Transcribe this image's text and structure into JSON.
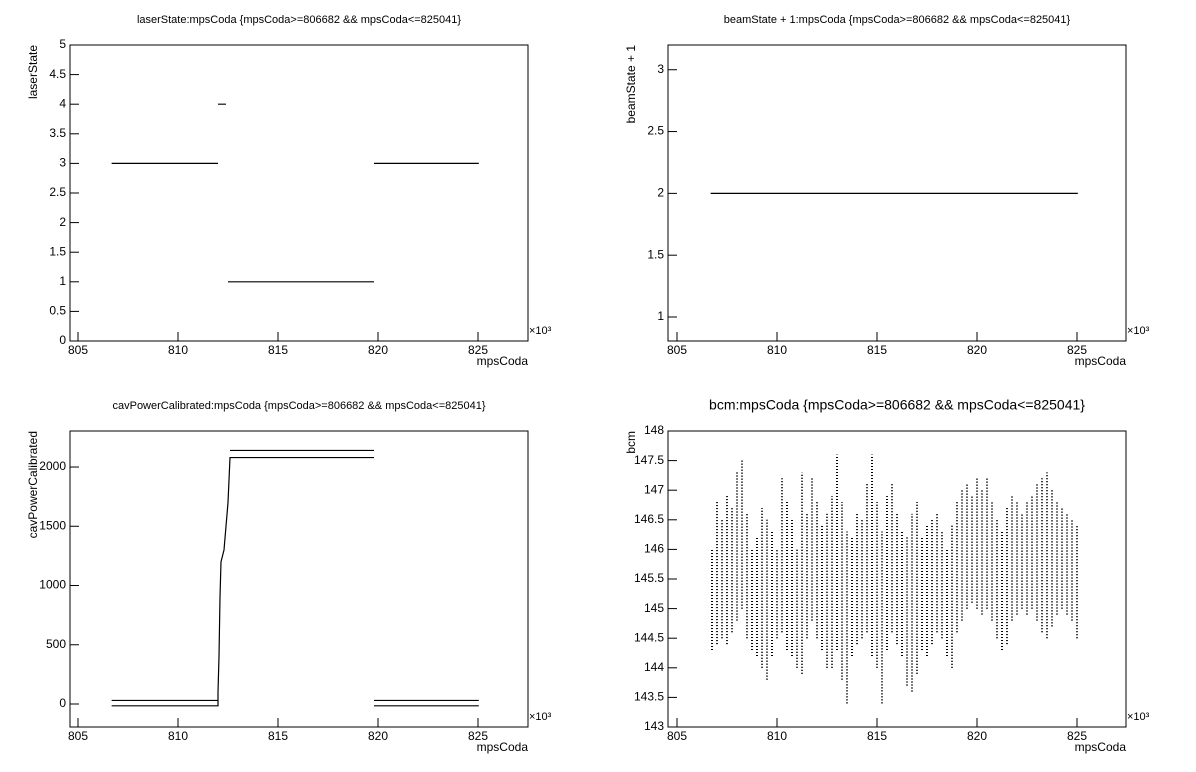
{
  "chart_data": [
    {
      "type": "line",
      "title": "laserState:mpsCoda {mpsCoda>=806682 && mpsCoda<=825041}",
      "x_label": "mpsCoda",
      "y_label": "laserState",
      "x_multiplier": "×10³",
      "xlim": [
        804.6,
        827.5
      ],
      "xticks": [
        805,
        810,
        815,
        820,
        825
      ],
      "ylim": [
        0,
        5
      ],
      "yticks": [
        0,
        0.5,
        1,
        1.5,
        2,
        2.5,
        3,
        3.5,
        4,
        4.5,
        5
      ],
      "series": [
        {
          "color": "#000000",
          "x": [
            806.682,
            812.0,
            812.0,
            812.0,
            812.4,
            812.4,
            812.5,
            819.8,
            819.8,
            819.8,
            825.041
          ],
          "values": [
            3,
            3,
            null,
            4,
            4,
            null,
            1,
            1,
            null,
            3,
            3
          ]
        }
      ]
    },
    {
      "type": "line",
      "title": "beamState + 1:mpsCoda {mpsCoda>=806682 && mpsCoda<=825041}",
      "x_label": "mpsCoda",
      "y_label": "beamState + 1",
      "x_multiplier": "×10³",
      "xlim": [
        804.55,
        827.45
      ],
      "xticks": [
        805,
        810,
        815,
        820,
        825
      ],
      "ylim": [
        0.806,
        3.2
      ],
      "yticks": [
        1,
        1.5,
        2,
        2.5,
        3
      ],
      "series": [
        {
          "color": "#000000",
          "x": [
            806.682,
            825.041
          ],
          "values": [
            2,
            2
          ]
        }
      ]
    },
    {
      "type": "line",
      "title": "cavPowerCalibrated:mpsCoda {mpsCoda>=806682 && mpsCoda<=825041}",
      "x_label": "mpsCoda",
      "y_label": "cavPowerCalibrated",
      "x_multiplier": "×10³",
      "xlim": [
        804.6,
        827.5
      ],
      "xticks": [
        805,
        810,
        815,
        820,
        825
      ],
      "ylim": [
        -194,
        2304
      ],
      "yticks": [
        0,
        500,
        1000,
        1500,
        2000
      ],
      "series": [
        {
          "color": "#000000",
          "x": [
            806.682,
            812.0,
            812.0,
            812.05,
            812.1,
            812.15,
            812.3,
            812.4,
            812.5,
            812.6,
            819.8,
            819.8,
            819.8,
            825.041
          ],
          "values": [
            -15,
            -15,
            100,
            400,
            900,
            1200,
            1300,
            1500,
            1700,
            2080,
            2080,
            null,
            -15,
            -15
          ]
        },
        {
          "color": "#000000",
          "x": [
            806.682,
            812.0,
            812.0,
            812.6,
            819.8,
            819.8,
            819.8,
            825.041
          ],
          "values": [
            30,
            30,
            null,
            2140,
            2140,
            null,
            30,
            30
          ]
        }
      ]
    },
    {
      "type": "range",
      "title": "bcm:mpsCoda {mpsCoda>=806682 && mpsCoda<=825041}",
      "x_label": "mpsCoda",
      "y_label": "bcm",
      "x_multiplier": "×10³",
      "xlim": [
        804.55,
        827.45
      ],
      "xticks": [
        805,
        810,
        815,
        820,
        825
      ],
      "ylim": [
        143,
        148
      ],
      "yticks": [
        143,
        143.5,
        144,
        144.5,
        145,
        145.5,
        146,
        146.5,
        147,
        147.5,
        148
      ],
      "color": "#000000",
      "x": [
        806.75,
        807,
        807.25,
        807.5,
        807.75,
        808,
        808.25,
        808.5,
        808.75,
        809,
        809.25,
        809.5,
        809.75,
        810,
        810.25,
        810.5,
        810.75,
        811,
        811.25,
        811.5,
        811.75,
        812,
        812.25,
        812.5,
        812.75,
        813,
        813.25,
        813.5,
        813.75,
        814,
        814.25,
        814.5,
        814.75,
        815,
        815.25,
        815.5,
        815.75,
        816,
        816.25,
        816.5,
        816.75,
        817,
        817.25,
        817.5,
        817.75,
        818,
        818.25,
        818.5,
        818.75,
        819,
        819.25,
        819.5,
        819.75,
        820,
        820.25,
        820.5,
        820.75,
        821,
        821.25,
        821.5,
        821.75,
        822,
        822.25,
        822.5,
        822.75,
        823,
        823.25,
        823.5,
        823.75,
        824,
        824.25,
        824.5,
        824.75,
        825
      ],
      "lows": [
        144.3,
        144.4,
        144.5,
        144.4,
        144.6,
        144.8,
        145.0,
        144.5,
        144.3,
        144.2,
        144.0,
        143.8,
        144.2,
        144.5,
        144.6,
        144.3,
        144.2,
        144.0,
        143.9,
        144.5,
        144.8,
        144.5,
        144.3,
        144.0,
        144.0,
        144.3,
        143.8,
        143.4,
        144.2,
        144.4,
        144.5,
        144.6,
        144.2,
        144.0,
        143.4,
        144.3,
        144.6,
        144.4,
        144.2,
        143.7,
        143.6,
        143.9,
        144.3,
        144.2,
        144.4,
        144.6,
        144.5,
        144.2,
        144.0,
        144.6,
        144.8,
        145.0,
        145.1,
        145.0,
        144.9,
        145.0,
        144.8,
        144.5,
        144.3,
        144.4,
        144.8,
        144.9,
        145.0,
        144.9,
        145.0,
        144.8,
        144.6,
        144.5,
        144.7,
        144.9,
        145.0,
        144.9,
        144.8,
        144.5
      ],
      "highs": [
        146.0,
        146.8,
        146.5,
        146.9,
        146.7,
        147.3,
        147.5,
        146.6,
        146.0,
        146.2,
        146.7,
        146.5,
        146.3,
        146.0,
        147.2,
        146.8,
        146.5,
        146.0,
        147.3,
        146.6,
        147.2,
        146.8,
        146.4,
        146.6,
        146.9,
        147.6,
        146.8,
        146.3,
        146.2,
        146.6,
        146.5,
        147.1,
        147.6,
        146.8,
        146.3,
        146.9,
        147.1,
        146.6,
        146.3,
        146.2,
        146.6,
        146.8,
        146.2,
        146.4,
        146.5,
        146.6,
        146.3,
        146.0,
        146.4,
        146.8,
        147.0,
        147.1,
        146.9,
        147.2,
        147.0,
        147.2,
        146.8,
        146.5,
        146.3,
        146.7,
        146.9,
        146.8,
        146.6,
        146.8,
        146.9,
        147.1,
        147.2,
        147.3,
        147.0,
        146.8,
        146.7,
        146.6,
        146.5,
        146.4
      ]
    }
  ]
}
